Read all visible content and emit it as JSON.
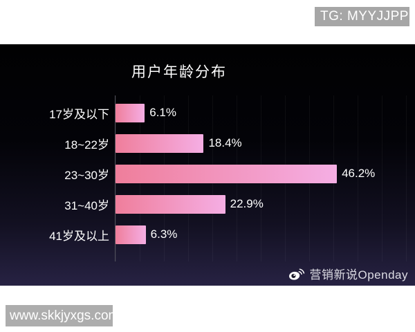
{
  "top_badge": {
    "label": "TG: MYYJJPP",
    "bg": "#a6a6a6",
    "text_color": "#ffffff"
  },
  "chart_data": {
    "type": "bar",
    "orientation": "horizontal",
    "title": "用户年龄分布",
    "categories": [
      "17岁及以下",
      "18~22岁",
      "23~30岁",
      "31~40岁",
      "41岁及以上"
    ],
    "values": [
      6.1,
      18.4,
      46.2,
      22.9,
      6.3
    ],
    "value_labels": [
      "6.1%",
      "18.4%",
      "46.2%",
      "22.9%",
      "6.3%"
    ],
    "xlim": [
      0,
      62.5
    ],
    "grid": "faint-vertical-lines",
    "legend": "none",
    "background": "dark-gradient-black-to-purple",
    "bar_gradient": [
      "#ef7e9b",
      "#f5aee4"
    ],
    "label_color": "#ffffff"
  },
  "watermark": {
    "icon": "weibo-icon",
    "label": "营销新说Openday"
  },
  "bottom_badge": {
    "label": "www.skkjyxgs.com",
    "bg": "#adadad",
    "text_color": "#ffffff"
  }
}
